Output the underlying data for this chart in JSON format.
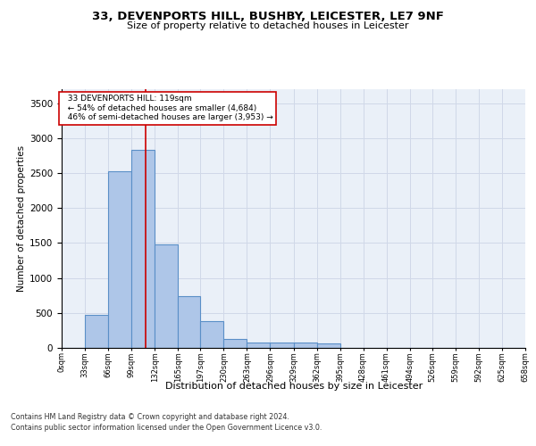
{
  "title": "33, DEVENPORTS HILL, BUSHBY, LEICESTER, LE7 9NF",
  "subtitle": "Size of property relative to detached houses in Leicester",
  "xlabel": "Distribution of detached houses by size in Leicester",
  "ylabel": "Number of detached properties",
  "bar_edges": [
    0,
    33,
    66,
    99,
    132,
    165,
    197,
    230,
    263,
    296,
    329,
    362,
    395,
    428,
    461,
    494,
    526,
    559,
    592,
    625,
    658
  ],
  "bar_heights": [
    5,
    470,
    2520,
    2830,
    1480,
    740,
    385,
    130,
    75,
    75,
    75,
    65,
    5,
    2,
    2,
    2,
    2,
    2,
    2,
    2
  ],
  "bar_color": "#aec6e8",
  "bar_edgecolor": "#5a8fc7",
  "bar_linewidth": 0.8,
  "vline_x": 119,
  "vline_color": "#cc0000",
  "vline_linewidth": 1.2,
  "annotation_text": "  33 DEVENPORTS HILL: 119sqm\n  ← 54% of detached houses are smaller (4,684)\n  46% of semi-detached houses are larger (3,953) →",
  "annotation_box_color": "#ffffff",
  "annotation_box_edgecolor": "#cc0000",
  "ylim": [
    0,
    3700
  ],
  "yticks": [
    0,
    500,
    1000,
    1500,
    2000,
    2500,
    3000,
    3500
  ],
  "grid_color": "#d0d8e8",
  "background_color": "#eaf0f8",
  "footer_line1": "Contains HM Land Registry data © Crown copyright and database right 2024.",
  "footer_line2": "Contains public sector information licensed under the Open Government Licence v3.0.",
  "tick_labels": [
    "0sqm",
    "33sqm",
    "66sqm",
    "99sqm",
    "132sqm",
    "165sqm",
    "197sqm",
    "230sqm",
    "263sqm",
    "296sqm",
    "329sqm",
    "362sqm",
    "395sqm",
    "428sqm",
    "461sqm",
    "494sqm",
    "526sqm",
    "559sqm",
    "592sqm",
    "625sqm",
    "658sqm"
  ]
}
